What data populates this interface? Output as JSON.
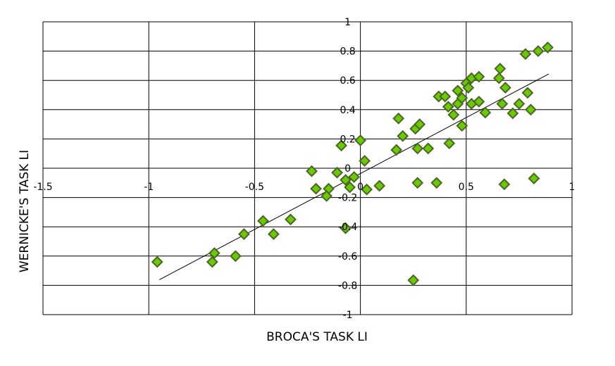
{
  "chart_data": {
    "type": "scatter",
    "xlabel": "BROCA'S TASK LI",
    "ylabel": "WERNICKE'S TASK LI",
    "xlim": [
      -1.5,
      1
    ],
    "ylim": [
      -1,
      1
    ],
    "x_ticks": [
      -1.5,
      -1,
      -0.5,
      0,
      0.5,
      1
    ],
    "x_tick_labels": [
      "-1.5",
      "-1",
      "-0.5",
      "0",
      "0.5",
      "1"
    ],
    "y_ticks": [
      -1,
      -0.8,
      -0.6,
      -0.4,
      -0.2,
      0,
      0.2,
      0.4,
      0.6,
      0.8,
      1
    ],
    "y_tick_labels": [
      "-1",
      "-0.8",
      "-0.6",
      "-0.4",
      "-0.2",
      "0",
      "0.2",
      "0.4",
      "0.6",
      "0.8",
      "1"
    ],
    "grid": true,
    "marker": "diamond",
    "marker_color": "#66cc00",
    "marker_edge_color": "#4f6228",
    "trendline": {
      "type": "linear",
      "slope": 0.764,
      "intercept": -0.036,
      "x_range": [
        -0.95,
        0.89
      ]
    },
    "points": [
      [
        -0.96,
        -0.64
      ],
      [
        -0.69,
        -0.58
      ],
      [
        -0.7,
        -0.64
      ],
      [
        -0.59,
        -0.6
      ],
      [
        -0.55,
        -0.45
      ],
      [
        -0.46,
        -0.36
      ],
      [
        -0.41,
        -0.45
      ],
      [
        -0.33,
        -0.35
      ],
      [
        -0.23,
        -0.02
      ],
      [
        -0.21,
        -0.14
      ],
      [
        -0.15,
        -0.14
      ],
      [
        -0.16,
        -0.19
      ],
      [
        -0.11,
        -0.03
      ],
      [
        -0.09,
        0.155
      ],
      [
        -0.07,
        -0.08
      ],
      [
        -0.05,
        -0.13
      ],
      [
        -0.03,
        -0.06
      ],
      [
        -0.07,
        -0.41
      ],
      [
        0.0,
        0.19
      ],
      [
        0.02,
        0.05
      ],
      [
        0.03,
        -0.145
      ],
      [
        0.09,
        -0.12
      ],
      [
        0.18,
        0.34
      ],
      [
        0.2,
        0.22
      ],
      [
        0.17,
        0.125
      ],
      [
        0.26,
        0.27
      ],
      [
        0.28,
        0.3
      ],
      [
        0.27,
        0.135
      ],
      [
        0.32,
        0.135
      ],
      [
        0.27,
        -0.1
      ],
      [
        0.36,
        -0.1
      ],
      [
        0.25,
        -0.765
      ],
      [
        0.37,
        0.49
      ],
      [
        0.4,
        0.49
      ],
      [
        0.415,
        0.42
      ],
      [
        0.44,
        0.365
      ],
      [
        0.42,
        0.17
      ],
      [
        0.46,
        0.53
      ],
      [
        0.46,
        0.44
      ],
      [
        0.48,
        0.48
      ],
      [
        0.48,
        0.29
      ],
      [
        0.5,
        0.58
      ],
      [
        0.51,
        0.55
      ],
      [
        0.525,
        0.615
      ],
      [
        0.56,
        0.625
      ],
      [
        0.525,
        0.44
      ],
      [
        0.56,
        0.455
      ],
      [
        0.59,
        0.38
      ],
      [
        0.66,
        0.68
      ],
      [
        0.655,
        0.615
      ],
      [
        0.685,
        0.55
      ],
      [
        0.67,
        0.44
      ],
      [
        0.68,
        -0.11
      ],
      [
        0.72,
        0.375
      ],
      [
        0.75,
        0.44
      ],
      [
        0.78,
        0.78
      ],
      [
        0.79,
        0.515
      ],
      [
        0.805,
        0.4
      ],
      [
        0.82,
        -0.07
      ],
      [
        0.84,
        0.8
      ],
      [
        0.885,
        0.825
      ]
    ]
  }
}
